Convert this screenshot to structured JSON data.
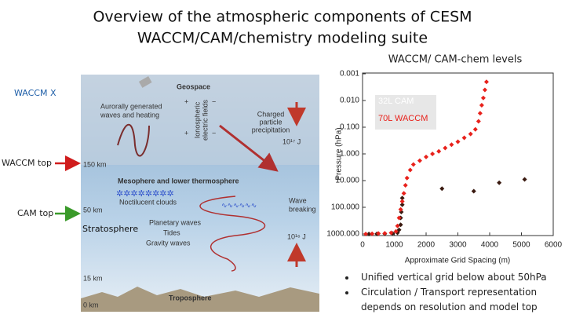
{
  "slide": {
    "title_lines": [
      "Overview of the atmospheric components of CESM",
      "WACCM/CAM/chemistry modeling suite"
    ],
    "chart_heading": "WACCM/ CAM-chem levels",
    "side_labels": [
      "WACCM X",
      "WACCM top",
      "CAM top"
    ],
    "stratosphere": "Stratosphere",
    "bullets": [
      "Unified vertical grid below about 50hPa",
      "Circulation / Transport representation depends on resolution and model top"
    ]
  },
  "diagram": {
    "geospace": "Geospace",
    "aurora": [
      "Aurorally generated",
      "waves and heating"
    ],
    "ionospheric": [
      "Ionospheric",
      "electric fields"
    ],
    "precipitation": [
      "Charged",
      "particle",
      "precipitation"
    ],
    "energy_top": "10¹⁷ J",
    "km150": "150 km",
    "mlt": "Mesophere and lower thermosphere",
    "km50": "50 km",
    "noctilucent": "Noctilucent clouds",
    "wave_breaking": [
      "Wave",
      "breaking"
    ],
    "planetary": "Planetary waves",
    "tides": "Tides",
    "gravity": "Gravity waves",
    "energy_mid": "10¹⁶ J",
    "km15": "15 km",
    "km0": "0 km",
    "troposphere": "Troposphere"
  },
  "chart_data": {
    "type": "scatter",
    "x_label": "Approximate Grid Spacing (m)",
    "y_label": "Pressure (hPa)",
    "xlim": [
      0,
      6000
    ],
    "xticks": [
      0,
      1000,
      2000,
      3000,
      4000,
      5000,
      6000
    ],
    "ylim": [
      0.001,
      1000
    ],
    "y_log": true,
    "y_inverted": true,
    "yticks": [
      0.001,
      {
        "value": 0.01,
        "label": "0.010"
      },
      {
        "value": 0.1,
        "label": "0.100"
      },
      {
        "value": 1,
        "label": "1.000"
      },
      {
        "value": 10,
        "label": "10.000"
      },
      {
        "value": 100,
        "label": "100.000"
      },
      {
        "value": 1000,
        "label": "1000.000"
      }
    ],
    "grid": false,
    "legend": "upper left",
    "series": [
      {
        "name": "32L CAM",
        "color": "#3a1a10",
        "x": [
          200,
          450,
          700,
          950,
          1100,
          1150,
          1200,
          1200,
          1220,
          1250,
          1250,
          2500,
          3500,
          4300,
          5100
        ],
        "values": [
          1000,
          990,
          980,
          960,
          900,
          700,
          450,
          250,
          150,
          80,
          45,
          20,
          25,
          12,
          9
        ]
      },
      {
        "name": "70L WACCM",
        "color": "#e8211b",
        "x": [
          100,
          300,
          500,
          700,
          900,
          1050,
          1100,
          1150,
          1200,
          1250,
          1300,
          1350,
          1400,
          1500,
          1600,
          1800,
          2000,
          2200,
          2400,
          2600,
          2800,
          3000,
          3200,
          3400,
          3550,
          3650,
          3700,
          3750,
          3800,
          3850,
          3900
        ],
        "values": [
          1000,
          980,
          960,
          940,
          900,
          800,
          500,
          250,
          120,
          60,
          30,
          15,
          8,
          4,
          2.5,
          1.8,
          1.3,
          1,
          0.8,
          0.6,
          0.45,
          0.35,
          0.25,
          0.18,
          0.12,
          0.06,
          0.03,
          0.015,
          0.008,
          0.004,
          0.002
        ]
      }
    ]
  }
}
